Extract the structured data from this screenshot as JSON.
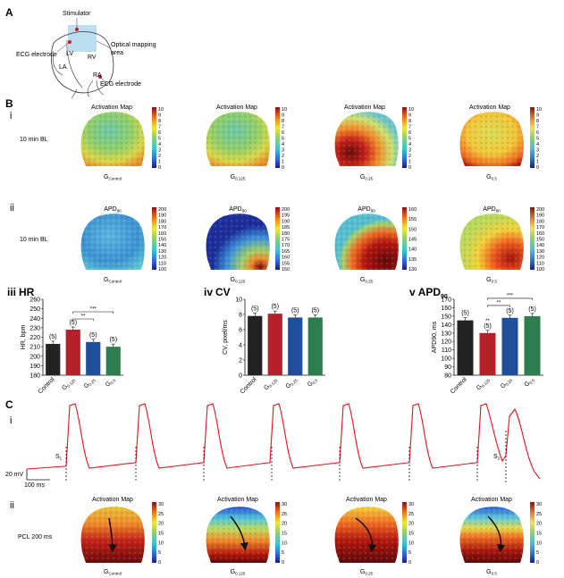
{
  "panel_A": {
    "letter": "A",
    "labels": {
      "stimulator": "Stimulator",
      "optical": "Optical mapping",
      "optical2": "area",
      "ecg_left": "ECG electrode",
      "lv": "LV",
      "rv": "RV",
      "la": "LA",
      "ra": "RA",
      "ecg_right": "ECG electrode"
    }
  },
  "panel_B": {
    "letter": "B",
    "row_i": {
      "roman": "i",
      "condition": "10 min BL",
      "titles": [
        "Activation Map",
        "Activation Map",
        "Activation Map",
        "Activation Map"
      ],
      "scale_ticks": [
        "10",
        "9",
        "8",
        "7",
        "6",
        "5",
        "4",
        "3",
        "2",
        "1",
        "0"
      ]
    },
    "row_ii": {
      "roman": "ii",
      "condition": "10 min BL",
      "title_main": [
        "APD",
        "APD",
        "APD",
        "APD"
      ],
      "title_sub": [
        "80",
        "80",
        "80",
        "80"
      ],
      "scales": [
        [
          "200",
          "190",
          "180",
          "170",
          "160",
          "150",
          "140",
          "130",
          "120",
          "110",
          "100"
        ],
        [
          "200",
          "195",
          "190",
          "185",
          "180",
          "175",
          "170",
          "165",
          "160",
          "155",
          "150"
        ],
        [
          "160",
          "155",
          "150",
          "145",
          "140",
          "135",
          "130"
        ],
        [
          "200",
          "190",
          "180",
          "170",
          "160",
          "150",
          "140",
          "130",
          "120",
          "110",
          "100"
        ]
      ]
    },
    "group_main": [
      "G",
      "G",
      "G",
      "G"
    ],
    "group_sub": [
      "Control",
      "0.125",
      "0.25",
      "0.5"
    ],
    "bar_titles": {
      "hr_roman": "iii",
      "hr_name": "HR",
      "cv_roman": "iv",
      "cv_name": "CV",
      "apd_roman": "v",
      "apd_name": "APD",
      "apd_sub": "90"
    }
  },
  "panel_C": {
    "letter": "C",
    "row_i": {
      "roman": "i",
      "s1": "S",
      "s1_sub": "1",
      "s2": "S",
      "s2_sub": "2",
      "scale_v": "20 mV",
      "scale_t": "100 ms"
    },
    "row_ii": {
      "roman": "ii",
      "condition": "PCL 200 ms",
      "titles": [
        "Activation Map",
        "Activation Map",
        "Activation Map",
        "Activation Map"
      ],
      "scales": [
        [
          "30",
          "25",
          "20",
          "15",
          "10",
          "5",
          "0"
        ],
        [
          "30",
          "25",
          "20",
          "15",
          "10",
          "5",
          "0"
        ],
        [
          "30",
          "25",
          "20",
          "15",
          "10",
          "5",
          "0"
        ],
        [
          "30",
          "25",
          "20",
          "15",
          "10",
          "5",
          "0"
        ]
      ]
    }
  },
  "chart_data": [
    {
      "type": "bar",
      "title": "HR",
      "xlabel": "",
      "ylabel": "HR, bpm",
      "categories": [
        "Control",
        "G0.125",
        "G0.25",
        "G0.5"
      ],
      "values": [
        213,
        228,
        215,
        210
      ],
      "n_labels": [
        "(5)",
        "(5)",
        "(5)",
        "(5)"
      ],
      "ylim": [
        180,
        260
      ],
      "yticks": [
        180,
        190,
        200,
        210,
        220,
        230,
        240,
        250,
        260
      ],
      "colors": [
        "#222222",
        "#b5202a",
        "#1f4e9a",
        "#2e7d4f"
      ],
      "significance": [
        {
          "from": 1,
          "to": 2,
          "label": "**"
        },
        {
          "from": 1,
          "to": 3,
          "label": "***"
        }
      ]
    },
    {
      "type": "bar",
      "title": "CV",
      "xlabel": "",
      "ylabel": "CV, pixel/ms",
      "categories": [
        "Control",
        "G0.125",
        "G0.25",
        "G0.5"
      ],
      "values": [
        7.8,
        8.1,
        7.6,
        7.6
      ],
      "n_labels": [
        "(5)",
        "(5)",
        "(5)",
        "(5)"
      ],
      "ylim": [
        0,
        10
      ],
      "yticks": [
        0,
        2,
        4,
        6,
        8,
        10
      ],
      "colors": [
        "#222222",
        "#b5202a",
        "#1f4e9a",
        "#2e7d4f"
      ],
      "significance": []
    },
    {
      "type": "bar",
      "title": "APD90",
      "xlabel": "",
      "ylabel": "APD90, ms",
      "categories": [
        "Control",
        "G0.125",
        "G0.25",
        "G0.5"
      ],
      "values": [
        145,
        130,
        148,
        150
      ],
      "n_labels": [
        "(5)",
        "(5)",
        "(5)",
        "(5)"
      ],
      "ylim": [
        80,
        170
      ],
      "yticks": [
        80,
        90,
        100,
        110,
        120,
        130,
        140,
        150,
        160,
        170
      ],
      "colors": [
        "#222222",
        "#b5202a",
        "#1f4e9a",
        "#2e7d4f"
      ],
      "point_marks": [
        {
          "index": 1,
          "label": "**"
        }
      ],
      "significance": [
        {
          "from": 1,
          "to": 2,
          "label": "**"
        },
        {
          "from": 1,
          "to": 3,
          "label": "***"
        }
      ]
    }
  ]
}
